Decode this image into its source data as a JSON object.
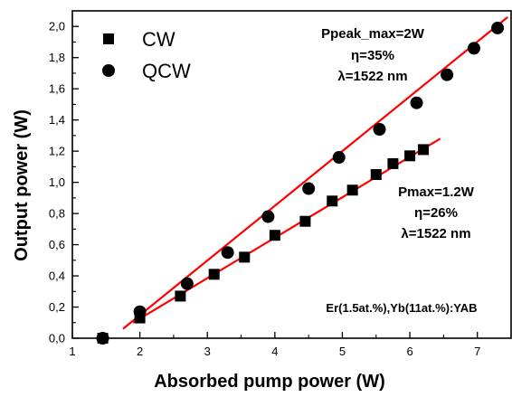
{
  "chart_data": {
    "type": "scatter",
    "xlabel": "Absorbed pump power (W)",
    "ylabel": "Output power (W)",
    "xlim": [
      1,
      7.5
    ],
    "ylim": [
      0,
      2.1
    ],
    "xticks": [
      1,
      2,
      3,
      4,
      5,
      6,
      7
    ],
    "yticks": [
      0.0,
      0.2,
      0.4,
      0.6,
      0.8,
      1.0,
      1.2,
      1.4,
      1.6,
      1.8,
      2.0
    ],
    "xtick_labels": [
      "1",
      "2",
      "3",
      "4",
      "5",
      "6",
      "7"
    ],
    "ytick_labels": [
      "0,0",
      "0,2",
      "0,4",
      "0,6",
      "0,8",
      "1,0",
      "1,2",
      "1,4",
      "1,6",
      "1,8",
      "2,0"
    ],
    "grid": false,
    "legend_position": "top-left",
    "fit_color": "#ff0000",
    "marker_color": "#000000",
    "series": [
      {
        "name": "CW",
        "marker": "square",
        "x": [
          1.45,
          2.0,
          2.6,
          3.1,
          3.55,
          4.0,
          4.45,
          4.85,
          5.15,
          5.5,
          5.75,
          6.0,
          6.2
        ],
        "y": [
          0.0,
          0.13,
          0.27,
          0.41,
          0.52,
          0.66,
          0.75,
          0.88,
          0.95,
          1.05,
          1.12,
          1.17,
          1.21
        ],
        "fit": {
          "x": [
            1.9,
            6.45
          ],
          "y": [
            0.1,
            1.28
          ]
        }
      },
      {
        "name": "QCW",
        "marker": "circle",
        "x": [
          1.45,
          2.0,
          2.7,
          3.3,
          3.9,
          4.5,
          4.95,
          5.55,
          6.1,
          6.55,
          6.95,
          7.3
        ],
        "y": [
          0.0,
          0.17,
          0.35,
          0.55,
          0.78,
          0.96,
          1.16,
          1.34,
          1.51,
          1.69,
          1.86,
          1.99
        ],
        "fit": {
          "x": [
            1.75,
            7.45
          ],
          "y": [
            0.06,
            2.06
          ]
        }
      }
    ],
    "annotations": {
      "qcw": [
        "Ppeak_max=2W",
        "η=35%",
        "λ=1522 nm"
      ],
      "cw": [
        "Pmax=1.2W",
        "η=26%",
        "λ=1522 nm"
      ],
      "material": "Er(1.5at.%),Yb(11at.%):YAB"
    }
  }
}
